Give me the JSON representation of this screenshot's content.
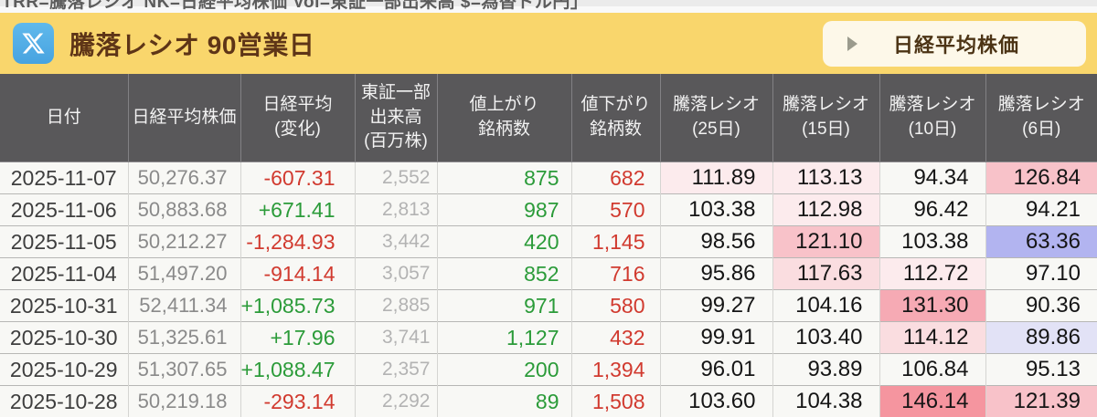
{
  "legend_bar": {
    "text": "TRR=騰落レシオ NK=日経平均株価 Vol=東証一部出来高 $=為替ドル円」"
  },
  "header": {
    "title": "騰落レシオ 90営業日",
    "x_icon": "x-twitter-logo",
    "nikkei_button_label": "日経平均株価",
    "arrow_icon": "right-triangle"
  },
  "table": {
    "columns": [
      {
        "id": "date",
        "label": "日付"
      },
      {
        "id": "nikkei",
        "label": "日経平均株価"
      },
      {
        "id": "change",
        "label": "日経平均\n(変化)"
      },
      {
        "id": "volume",
        "label": "東証一部\n出来高\n(百万株)"
      },
      {
        "id": "advancers",
        "label": "値上がり\n銘柄数"
      },
      {
        "id": "decliners",
        "label": "値下がり\n銘柄数"
      },
      {
        "id": "ratio25",
        "label": "騰落レシオ\n(25日)"
      },
      {
        "id": "ratio15",
        "label": "騰落レシオ\n(15日)"
      },
      {
        "id": "ratio10",
        "label": "騰落レシオ\n(10日)"
      },
      {
        "id": "ratio6",
        "label": "騰落レシオ\n(6日)"
      }
    ],
    "rows": [
      {
        "date": "2025-11-07",
        "nikkei": "50,276.37",
        "change": "-607.31",
        "volume": "2,552",
        "advancers": "875",
        "decliners": "682",
        "ratio25": "111.89",
        "ratio15": "113.13",
        "ratio10": "94.34",
        "ratio6": "126.84",
        "tints": {
          "ratio25": "p1",
          "ratio15": "p1",
          "ratio6": "p3"
        }
      },
      {
        "date": "2025-11-06",
        "nikkei": "50,883.68",
        "change": "+671.41",
        "volume": "2,813",
        "advancers": "987",
        "decliners": "570",
        "ratio25": "103.38",
        "ratio15": "112.98",
        "ratio10": "96.42",
        "ratio6": "94.21",
        "tints": {
          "ratio15": "p1"
        }
      },
      {
        "date": "2025-11-05",
        "nikkei": "50,212.27",
        "change": "-1,284.93",
        "volume": "3,442",
        "advancers": "420",
        "decliners": "1,145",
        "ratio25": "98.56",
        "ratio15": "121.10",
        "ratio10": "103.38",
        "ratio6": "63.36",
        "tints": {
          "ratio15": "p3",
          "ratio6": "b2"
        }
      },
      {
        "date": "2025-11-04",
        "nikkei": "51,497.20",
        "change": "-914.14",
        "volume": "3,057",
        "advancers": "852",
        "decliners": "716",
        "ratio25": "95.86",
        "ratio15": "117.63",
        "ratio10": "112.72",
        "ratio6": "97.10",
        "tints": {
          "ratio15": "p2",
          "ratio10": "p1"
        }
      },
      {
        "date": "2025-10-31",
        "nikkei": "52,411.34",
        "change": "+1,085.73",
        "volume": "2,885",
        "advancers": "971",
        "decliners": "580",
        "ratio25": "99.27",
        "ratio15": "104.16",
        "ratio10": "131.30",
        "ratio6": "90.36",
        "tints": {
          "ratio10": "p4"
        }
      },
      {
        "date": "2025-10-30",
        "nikkei": "51,325.61",
        "change": "+17.96",
        "volume": "3,741",
        "advancers": "1,127",
        "decliners": "432",
        "ratio25": "99.91",
        "ratio15": "103.40",
        "ratio10": "114.12",
        "ratio6": "89.86",
        "tints": {
          "ratio10": "p2",
          "ratio6": "b1"
        }
      },
      {
        "date": "2025-10-29",
        "nikkei": "51,307.65",
        "change": "+1,088.47",
        "volume": "2,357",
        "advancers": "200",
        "decliners": "1,394",
        "ratio25": "96.01",
        "ratio15": "93.89",
        "ratio10": "106.84",
        "ratio6": "95.13",
        "tints": {}
      },
      {
        "date": "2025-10-28",
        "nikkei": "50,219.18",
        "change": "-293.14",
        "volume": "2,292",
        "advancers": "89",
        "decliners": "1,508",
        "ratio25": "103.60",
        "ratio15": "104.38",
        "ratio10": "146.14",
        "ratio6": "121.39",
        "tints": {
          "ratio10": "p5",
          "ratio6": "p3"
        }
      }
    ]
  },
  "colors": {
    "accent_yellow": "#f9d66c",
    "x_blue": "#54b0e9",
    "title_brown": "#5e3517",
    "positive_green": "#2b9b39",
    "negative_red": "#d13a2f",
    "header_gray": "#59585a",
    "tints": {
      "p1": "#fcebed",
      "p2": "#fadde0",
      "p3": "#f8c2c9",
      "p4": "#f6aab4",
      "p5": "#f5959f",
      "b1": "#e2e2f6",
      "b2": "#b2b4f0"
    }
  }
}
